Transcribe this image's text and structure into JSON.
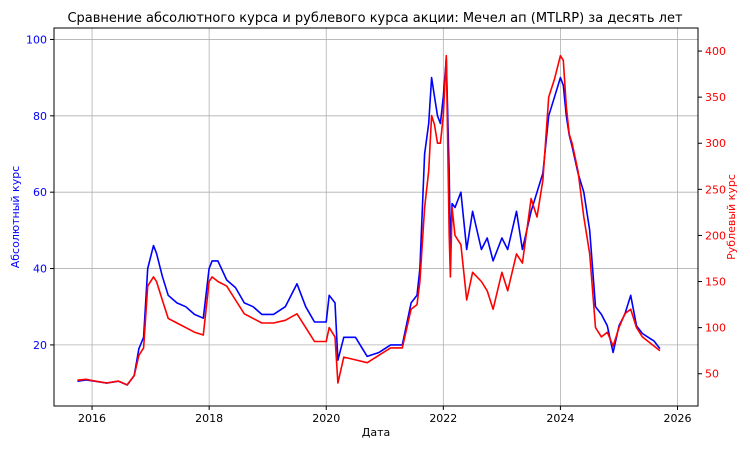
{
  "chart_data": {
    "type": "line",
    "title": "Сравнение абсолютного курса и рублевого курса акции: Мечел ап (MTLRP) за десять лет",
    "xlabel": "Дата",
    "ylabel_left": "Абсолютный курс",
    "ylabel_right": "Рублевый курс",
    "x_ticks": [
      "2016",
      "2018",
      "2020",
      "2022",
      "2024",
      "2026"
    ],
    "x_range": [
      2015.35,
      2026.35
    ],
    "y_left_ticks": [
      "20",
      "40",
      "60",
      "80",
      "100"
    ],
    "y_left_range": [
      4,
      103
    ],
    "y_right_ticks": [
      "50",
      "100",
      "150",
      "200",
      "250",
      "300",
      "350",
      "400"
    ],
    "y_right_range": [
      15,
      425
    ],
    "grid": true,
    "colors": {
      "left_series": "#0000ff",
      "right_series": "#ff0000"
    },
    "series": [
      {
        "axis": "left",
        "color": "#0000ff",
        "x": [
          2015.75,
          2015.9,
          2016.05,
          2016.25,
          2016.45,
          2016.6,
          2016.72,
          2016.8,
          2016.88,
          2016.95,
          2017.05,
          2017.1,
          2017.2,
          2017.3,
          2017.45,
          2017.6,
          2017.75,
          2017.9,
          2018.0,
          2018.05,
          2018.15,
          2018.3,
          2018.45,
          2018.6,
          2018.75,
          2018.9,
          2019.1,
          2019.3,
          2019.5,
          2019.65,
          2019.8,
          2020.0,
          2020.05,
          2020.15,
          2020.2,
          2020.3,
          2020.5,
          2020.7,
          2020.9,
          2021.1,
          2021.3,
          2021.45,
          2021.55,
          2021.6,
          2021.68,
          2021.75,
          2021.8,
          2021.85,
          2021.9,
          2021.95,
          2022.0,
          2022.05,
          2022.1,
          2022.12,
          2022.15,
          2022.2,
          2022.3,
          2022.4,
          2022.5,
          2022.65,
          2022.75,
          2022.85,
          2023.0,
          2023.1,
          2023.25,
          2023.35,
          2023.5,
          2023.6,
          2023.7,
          2023.8,
          2023.9,
          2024.0,
          2024.05,
          2024.1,
          2024.15,
          2024.2,
          2024.3,
          2024.4,
          2024.5,
          2024.6,
          2024.7,
          2024.8,
          2024.9,
          2025.0,
          2025.1,
          2025.2,
          2025.3,
          2025.4,
          2025.5,
          2025.6,
          2025.7
        ],
        "values": [
          10.5,
          10.8,
          10.5,
          10.0,
          10.5,
          9.5,
          12,
          19,
          22,
          40,
          46,
          44,
          38,
          33,
          31,
          30,
          28,
          27,
          40,
          42,
          42,
          37,
          35,
          31,
          30,
          28,
          28,
          30,
          36,
          30,
          26,
          26,
          33,
          31,
          16,
          22,
          22,
          17,
          18,
          20,
          20,
          31,
          33,
          40,
          70,
          78,
          90,
          85,
          80,
          78,
          85,
          95,
          65,
          45,
          57,
          56,
          60,
          45,
          55,
          45,
          48,
          42,
          48,
          45,
          55,
          45,
          55,
          60,
          65,
          80,
          85,
          90,
          88,
          80,
          75,
          72,
          65,
          60,
          50,
          30,
          28,
          25,
          18,
          25,
          28,
          33,
          25,
          23,
          22,
          21,
          19
        ]
      },
      {
        "axis": "right",
        "color": "#ff0000",
        "x": [
          2015.75,
          2015.9,
          2016.05,
          2016.25,
          2016.45,
          2016.6,
          2016.72,
          2016.8,
          2016.88,
          2016.95,
          2017.05,
          2017.1,
          2017.2,
          2017.3,
          2017.45,
          2017.6,
          2017.75,
          2017.9,
          2018.0,
          2018.05,
          2018.15,
          2018.3,
          2018.45,
          2018.6,
          2018.75,
          2018.9,
          2019.1,
          2019.3,
          2019.5,
          2019.65,
          2019.8,
          2020.0,
          2020.05,
          2020.15,
          2020.2,
          2020.3,
          2020.5,
          2020.7,
          2020.9,
          2021.1,
          2021.3,
          2021.45,
          2021.55,
          2021.6,
          2021.68,
          2021.75,
          2021.8,
          2021.85,
          2021.9,
          2021.95,
          2022.0,
          2022.05,
          2022.1,
          2022.12,
          2022.15,
          2022.2,
          2022.3,
          2022.4,
          2022.5,
          2022.65,
          2022.75,
          2022.85,
          2023.0,
          2023.1,
          2023.25,
          2023.35,
          2023.5,
          2023.6,
          2023.7,
          2023.8,
          2023.9,
          2024.0,
          2024.05,
          2024.1,
          2024.15,
          2024.2,
          2024.3,
          2024.4,
          2024.5,
          2024.6,
          2024.7,
          2024.8,
          2024.9,
          2025.0,
          2025.1,
          2025.2,
          2025.3,
          2025.4,
          2025.5,
          2025.6,
          2025.7
        ],
        "values": [
          43,
          44,
          42,
          40,
          42,
          38,
          48,
          70,
          78,
          145,
          155,
          150,
          130,
          110,
          105,
          100,
          95,
          92,
          150,
          155,
          150,
          145,
          130,
          115,
          110,
          105,
          105,
          108,
          115,
          100,
          85,
          85,
          100,
          90,
          40,
          68,
          65,
          62,
          70,
          78,
          78,
          120,
          125,
          150,
          230,
          270,
          330,
          320,
          300,
          300,
          330,
          395,
          200,
          155,
          230,
          200,
          190,
          130,
          160,
          150,
          140,
          120,
          160,
          140,
          180,
          170,
          240,
          220,
          260,
          350,
          370,
          395,
          390,
          340,
          310,
          300,
          270,
          220,
          180,
          100,
          90,
          95,
          80,
          100,
          115,
          120,
          100,
          90,
          85,
          80,
          75
        ]
      }
    ]
  }
}
